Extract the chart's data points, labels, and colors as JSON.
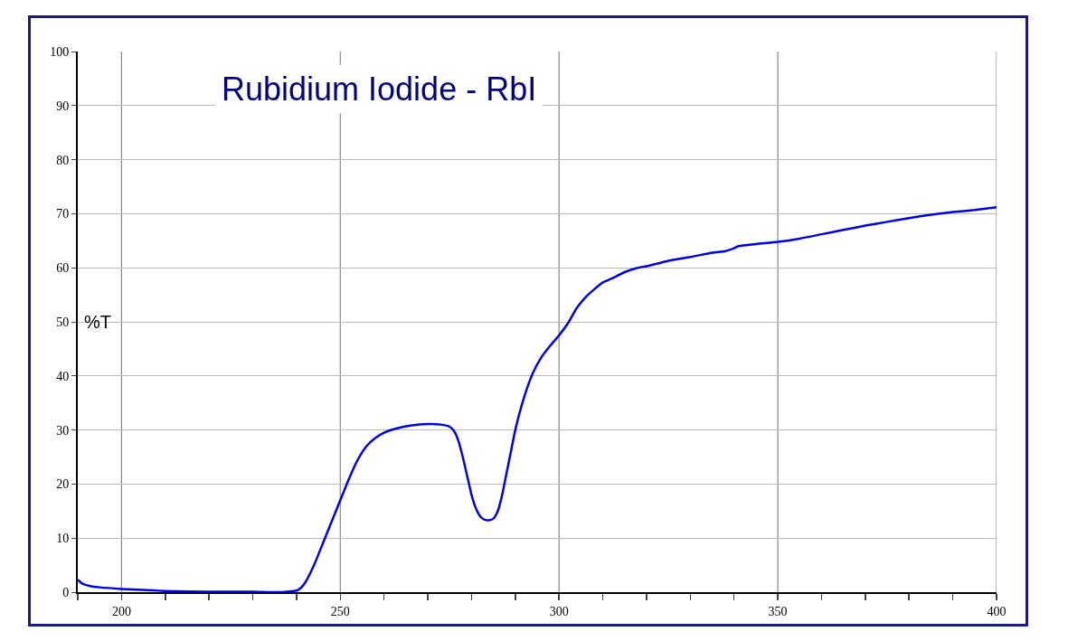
{
  "chart_data": {
    "type": "line",
    "title": "Rubidium Iodide - RbI",
    "ylabel": "%T",
    "x": [
      190,
      191,
      193,
      195,
      200,
      205,
      210,
      220,
      230,
      235,
      238,
      240,
      241,
      242,
      244,
      246,
      248,
      250,
      252,
      254,
      256,
      258,
      260,
      263,
      266,
      270,
      273,
      275,
      276,
      277,
      278,
      279,
      280,
      281,
      282,
      283,
      284,
      285,
      286,
      287,
      288,
      289,
      290,
      292,
      294,
      296,
      298,
      300,
      302,
      304,
      306,
      308,
      310,
      312,
      315,
      318,
      320,
      325,
      330,
      335,
      338,
      340,
      341,
      345,
      350,
      355,
      360,
      365,
      370,
      375,
      380,
      385,
      390,
      395,
      400
    ],
    "series": [
      {
        "color": "#0000e6",
        "values": [
          2.3,
          1.6,
          1.1,
          0.9,
          0.6,
          0.4,
          0.2,
          0.1,
          0.1,
          0,
          0.1,
          0.3,
          0.8,
          1.8,
          5,
          9,
          13,
          17,
          21,
          24.5,
          27,
          28.5,
          29.5,
          30.3,
          30.8,
          31.1,
          31,
          30.6,
          29.8,
          28,
          25,
          21.5,
          18,
          15.5,
          14,
          13.4,
          13.3,
          13.6,
          15,
          18,
          22,
          26,
          30,
          36,
          40.5,
          43.5,
          45.6,
          47.5,
          49.7,
          52.5,
          54.5,
          56,
          57.3,
          58,
          59.2,
          60,
          60.3,
          61.3,
          62,
          62.8,
          63.1,
          63.6,
          64,
          64.4,
          64.8,
          65.4,
          66.2,
          67,
          67.8,
          68.5,
          69.2,
          69.8,
          70.3,
          70.7,
          71.2
        ]
      }
    ],
    "xlim": [
      190,
      400
    ],
    "xticks": [
      {
        "value": 190,
        "label": null
      },
      200,
      {
        "value": 210,
        "label": null
      },
      {
        "value": 220,
        "label": null
      },
      {
        "value": 230,
        "label": null
      },
      {
        "value": 240,
        "label": null
      },
      250,
      {
        "value": 260,
        "label": null
      },
      {
        "value": 270,
        "label": null
      },
      {
        "value": 280,
        "label": null
      },
      {
        "value": 290,
        "label": null
      },
      300,
      {
        "value": 310,
        "label": null
      },
      {
        "value": 320,
        "label": null
      },
      {
        "value": 330,
        "label": null
      },
      {
        "value": 340,
        "label": null
      },
      350,
      {
        "value": 360,
        "label": null
      },
      {
        "value": 370,
        "label": null
      },
      {
        "value": 380,
        "label": null
      },
      {
        "value": 390,
        "label": null
      },
      400
    ],
    "ylim": [
      0,
      100
    ],
    "yticks": [
      0,
      10,
      20,
      30,
      40,
      50,
      60,
      70,
      80,
      90,
      100
    ],
    "grid": true,
    "marker": "none",
    "line_style": "solid"
  }
}
